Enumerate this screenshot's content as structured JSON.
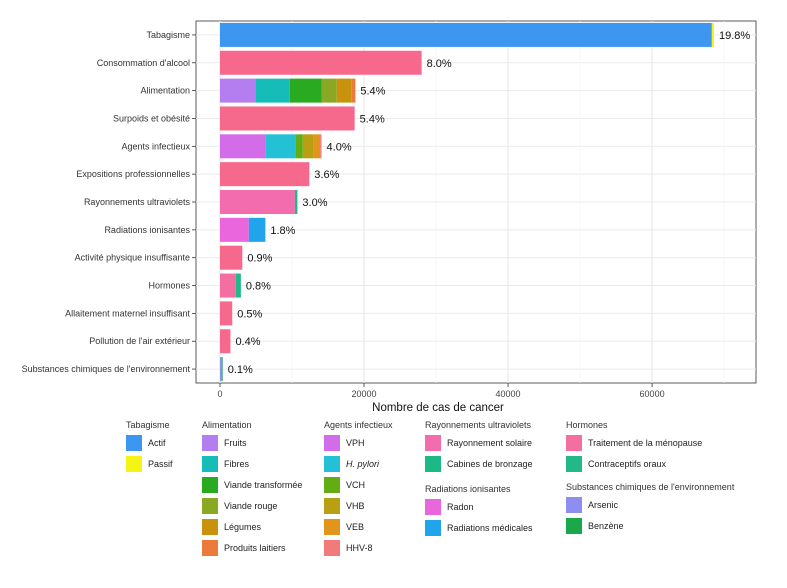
{
  "chart_data": {
    "type": "bar",
    "orientation": "horizontal",
    "stacked": true,
    "xlabel": "Nombre de cas de cancer",
    "xlim": [
      0,
      73000
    ],
    "xticks": [
      0,
      20000,
      40000,
      60000
    ],
    "xtick_labels": [
      "0",
      "20000",
      "40000",
      "60000"
    ],
    "grid": true,
    "legend_position": "bottom",
    "colors": {
      "Actif": "#3d97f0",
      "Passif": "#f5f514",
      "Fruits": "#b47ef0",
      "Fibres": "#16bcb8",
      "Viande transformée": "#2aaa21",
      "Viande rouge": "#8aa824",
      "Légumes": "#c8920d",
      "Produits laitiers": "#ec7a3a",
      "VPH": "#d26ce8",
      "H. pylori": "#24c0d6",
      "VCH": "#62ad14",
      "VHB": "#b8a012",
      "VEB": "#e1951a",
      "HHV-8": "#f27a7a",
      "Rayonnement solaire": "#f36dae",
      "Cabines de bronzage": "#1cb885",
      "Radon": "#ea66dc",
      "Radiations médicales": "#20a5ec",
      "Traitement de la ménopause": "#f56ea2",
      "Contraceptifs oraux": "#22b889",
      "Arsenic": "#8d8ef0",
      "Benzène": "#1aa84a",
      "Total": "#f7698c"
    },
    "bars": [
      {
        "category": "Tabagisme",
        "label": "19.8%",
        "segments": [
          {
            "name": "Actif",
            "value": 68300
          },
          {
            "name": "Passif",
            "value": 300
          }
        ]
      },
      {
        "category": "Consommation d'alcool",
        "label": "8.0%",
        "segments": [
          {
            "name": "Total",
            "value": 28000
          }
        ]
      },
      {
        "category": "Alimentation",
        "label": "5.4%",
        "segments": [
          {
            "name": "Fruits",
            "value": 5000
          },
          {
            "name": "Fibres",
            "value": 4700
          },
          {
            "name": "Viande transformée",
            "value": 4400
          },
          {
            "name": "Viande rouge",
            "value": 2100
          },
          {
            "name": "Légumes",
            "value": 2100
          },
          {
            "name": "Produits laitiers",
            "value": 500
          }
        ]
      },
      {
        "category": "Surpoids et obésité",
        "label": "5.4%",
        "segments": [
          {
            "name": "Total",
            "value": 18700
          }
        ]
      },
      {
        "category": "Agents infectieux",
        "label": "4.0%",
        "segments": [
          {
            "name": "VPH",
            "value": 6300
          },
          {
            "name": "H. pylori",
            "value": 4200
          },
          {
            "name": "VCH",
            "value": 1000
          },
          {
            "name": "VHB",
            "value": 1500
          },
          {
            "name": "VEB",
            "value": 900
          },
          {
            "name": "HHV-8",
            "value": 200
          }
        ]
      },
      {
        "category": "Expositions professionnelles",
        "label": "3.6%",
        "segments": [
          {
            "name": "Total",
            "value": 12400
          }
        ]
      },
      {
        "category": "Rayonnements ultraviolets",
        "label": "3.0%",
        "segments": [
          {
            "name": "Rayonnement solaire",
            "value": 10400
          },
          {
            "name": "Cabines de bronzage",
            "value": 350
          }
        ]
      },
      {
        "category": "Radiations ionisantes",
        "label": "1.8%",
        "segments": [
          {
            "name": "Radon",
            "value": 4000
          },
          {
            "name": "Radiations médicales",
            "value": 2300
          }
        ]
      },
      {
        "category": "Activité physique insuffisante",
        "label": "0.9%",
        "segments": [
          {
            "name": "Total",
            "value": 3100
          }
        ]
      },
      {
        "category": "Hormones",
        "label": "0.8%",
        "segments": [
          {
            "name": "Traitement de la ménopause",
            "value": 2200
          },
          {
            "name": "Contraceptifs oraux",
            "value": 700
          }
        ]
      },
      {
        "category": "Allaitement maternel insuffisant",
        "label": "0.5%",
        "segments": [
          {
            "name": "Total",
            "value": 1700
          }
        ]
      },
      {
        "category": "Pollution de l'air extérieur",
        "label": "0.4%",
        "segments": [
          {
            "name": "Total",
            "value": 1450
          }
        ]
      },
      {
        "category": "Substances chimiques de l'environnement",
        "label": "0.1%",
        "segments": [
          {
            "name": "Arsenic",
            "value": 300
          },
          {
            "name": "Benzène",
            "value": 80
          }
        ]
      }
    ],
    "legend": [
      {
        "title": "Tabagisme",
        "items": [
          {
            "label": "Actif",
            "color": "#3d97f0"
          },
          {
            "label": "Passif",
            "color": "#f5f514"
          }
        ]
      },
      {
        "title": "Alimentation",
        "items": [
          {
            "label": "Fruits",
            "color": "#b47ef0"
          },
          {
            "label": "Fibres",
            "color": "#16bcb8"
          },
          {
            "label": "Viande transformée",
            "color": "#2aaa21"
          },
          {
            "label": "Viande rouge",
            "color": "#8aa824"
          },
          {
            "label": "Légumes",
            "color": "#c8920d"
          },
          {
            "label": "Produits laitiers",
            "color": "#ec7a3a"
          }
        ]
      },
      {
        "title": "Agents infectieux",
        "items": [
          {
            "label": "VPH",
            "color": "#d26ce8"
          },
          {
            "label": "H. pylori",
            "color": "#24c0d6",
            "italic": true
          },
          {
            "label": "VCH",
            "color": "#62ad14"
          },
          {
            "label": "VHB",
            "color": "#b8a012"
          },
          {
            "label": "VEB",
            "color": "#e1951a"
          },
          {
            "label": "HHV-8",
            "color": "#f27a7a"
          }
        ]
      },
      {
        "title": "Rayonnements ultraviolets",
        "items": [
          {
            "label": "Rayonnement solaire",
            "color": "#f36dae"
          },
          {
            "label": "Cabines de bronzage",
            "color": "#1cb885"
          }
        ]
      },
      {
        "title": "Radiations ionisantes",
        "items": [
          {
            "label": "Radon",
            "color": "#ea66dc"
          },
          {
            "label": "Radiations médicales",
            "color": "#20a5ec"
          }
        ]
      },
      {
        "title": "Hormones",
        "items": [
          {
            "label": "Traitement de la ménopause",
            "color": "#f56ea2"
          },
          {
            "label": "Contraceptifs oraux",
            "color": "#22b889"
          }
        ]
      },
      {
        "title": "Substances chimiques de l'environnement",
        "items": [
          {
            "label": "Arsenic",
            "color": "#8d8ef0"
          },
          {
            "label": "Benzène",
            "color": "#1aa84a"
          }
        ]
      }
    ]
  }
}
